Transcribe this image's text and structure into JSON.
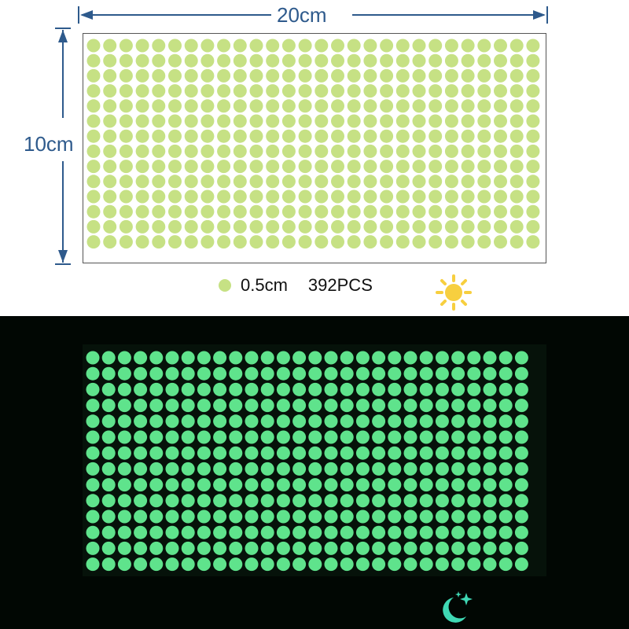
{
  "dimensions": {
    "width_label": "20cm",
    "height_label": "10cm"
  },
  "grid": {
    "columns": 28,
    "rows": 14
  },
  "legend": {
    "dot_size": "0.5cm",
    "count": "392PCS",
    "day_icon": "sun-icon",
    "night_icon": "moon-stars-icon"
  },
  "colors": {
    "day_dot": "#c6e184",
    "glow_dot": "#5fe38c",
    "dimension": "#2e5a8c",
    "sun": "#f7cf3f",
    "moon": "#3fd8b4"
  }
}
